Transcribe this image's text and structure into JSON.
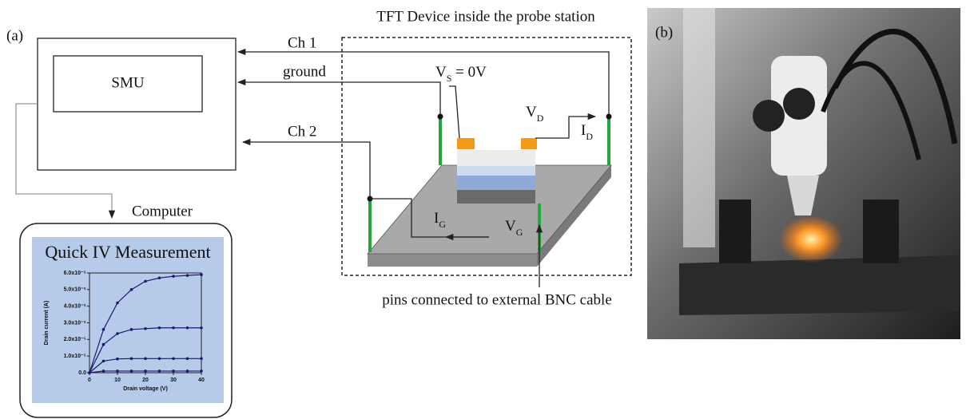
{
  "panel_a": {
    "label": "(a)",
    "smu": "SMU",
    "ch1": "Ch 1",
    "ground": "ground",
    "ch2": "Ch 2",
    "station_title": "TFT Device inside the probe station",
    "vs": {
      "main": "V",
      "sub": "S",
      "rest": " = 0V"
    },
    "vd": {
      "main": "V",
      "sub": "D"
    },
    "id": {
      "main": "I",
      "sub": "D"
    },
    "ig": {
      "main": "I",
      "sub": "G"
    },
    "vg": {
      "main": "V",
      "sub": "G"
    },
    "computer": "Computer",
    "pins_note": "pins connected to external BNC cable",
    "inset": {
      "title": "Quick IV Measurement",
      "chart_data": {
        "type": "line",
        "x_label": "Drain voltage (V)",
        "y_label": "Drain current (A)",
        "x": [
          0,
          5,
          10,
          15,
          20,
          25,
          30,
          35,
          40
        ],
        "series": [
          {
            "color": "#1a1a6e",
            "values": [
              0,
              2.6e-05,
              4.2e-05,
              5e-05,
              5.5e-05,
              5.7e-05,
              5.8e-05,
              5.85e-05,
              5.9e-05
            ]
          },
          {
            "color": "#1a1a6e",
            "values": [
              0,
              1.7e-05,
              2.35e-05,
              2.6e-05,
              2.65e-05,
              2.7e-05,
              2.7e-05,
              2.7e-05,
              2.7e-05
            ]
          },
          {
            "color": "#1a1a6e",
            "values": [
              0,
              7e-06,
              8.3e-06,
              8.5e-06,
              8.5e-06,
              8.5e-06,
              8.5e-06,
              8.5e-06,
              8.5e-06
            ]
          },
          {
            "color": "#1a1a6e",
            "values": [
              0,
              1e-06,
              1e-06,
              1e-06,
              1e-06,
              1e-06,
              1e-06,
              1e-06,
              1e-06
            ]
          }
        ],
        "xlim": [
          0,
          40
        ],
        "xticks": [
          0,
          10,
          20,
          30,
          40
        ],
        "ylim": [
          0,
          6e-05
        ],
        "yticks": [
          {
            "value": 0,
            "label": "0.0"
          },
          {
            "value": 1e-05,
            "label": "1.0x10⁻⁵"
          },
          {
            "value": 2e-05,
            "label": "2.0x10⁻⁵"
          },
          {
            "value": 3e-05,
            "label": "3.0x10⁻⁵"
          },
          {
            "value": 4e-05,
            "label": "4.0x10⁻⁵"
          },
          {
            "value": 5e-05,
            "label": "5.0x10⁻⁵"
          },
          {
            "value": 6e-05,
            "label": "6.0x10⁻⁵"
          }
        ]
      }
    }
  },
  "panel_b": {
    "label": "(b)"
  }
}
